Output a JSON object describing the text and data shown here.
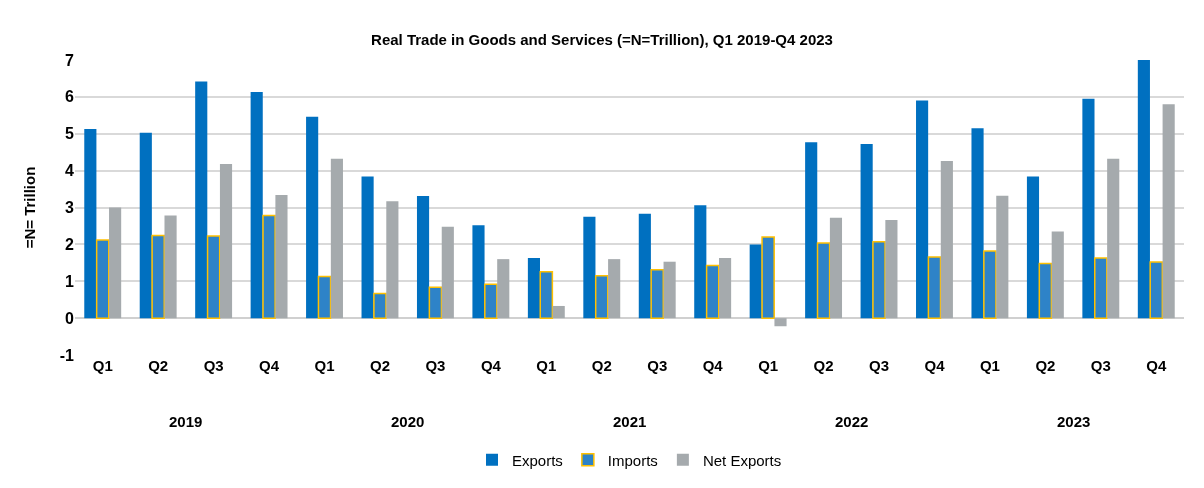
{
  "chart_data": {
    "type": "bar",
    "title": "Real Trade in Goods and Services (=N=Trillion), Q1 2019-Q4 2023",
    "ylabel": "=N= Trillion",
    "categories": [
      "Q1",
      "Q2",
      "Q3",
      "Q4",
      "Q1",
      "Q2",
      "Q3",
      "Q4",
      "Q1",
      "Q2",
      "Q3",
      "Q4",
      "Q1",
      "Q2",
      "Q3",
      "Q4",
      "Q1",
      "Q2",
      "Q3",
      "Q4"
    ],
    "annotations": [
      "2019",
      "2020",
      "2021",
      "2022",
      "2023"
    ],
    "series": [
      {
        "name": "Exports",
        "color": "#0070c0",
        "values": [
          5.13,
          5.03,
          6.42,
          6.13,
          5.46,
          3.84,
          3.31,
          2.52,
          1.63,
          2.75,
          2.83,
          3.06,
          2.0,
          4.77,
          4.72,
          5.9,
          5.15,
          3.84,
          5.95,
          7.0
        ]
      },
      {
        "name": "Imports",
        "color": "#2e83c8",
        "values": [
          2.12,
          2.24,
          2.23,
          2.78,
          1.13,
          0.67,
          0.84,
          0.92,
          1.26,
          1.15,
          1.31,
          1.43,
          2.2,
          2.04,
          2.07,
          1.66,
          1.82,
          1.48,
          1.63,
          1.52
        ]
      },
      {
        "name": "Net Exports",
        "color": "#a5aaad",
        "values": [
          3.0,
          2.78,
          4.18,
          3.34,
          4.32,
          3.17,
          2.48,
          1.6,
          0.33,
          1.6,
          1.53,
          1.63,
          -0.22,
          2.72,
          2.66,
          4.26,
          3.32,
          2.35,
          4.32,
          5.8
        ]
      }
    ],
    "ylim": [
      -1,
      7
    ],
    "yticks": [
      -1,
      0,
      1,
      2,
      3,
      4,
      5,
      6,
      7
    ],
    "grid": "y",
    "legend": "bottom"
  }
}
